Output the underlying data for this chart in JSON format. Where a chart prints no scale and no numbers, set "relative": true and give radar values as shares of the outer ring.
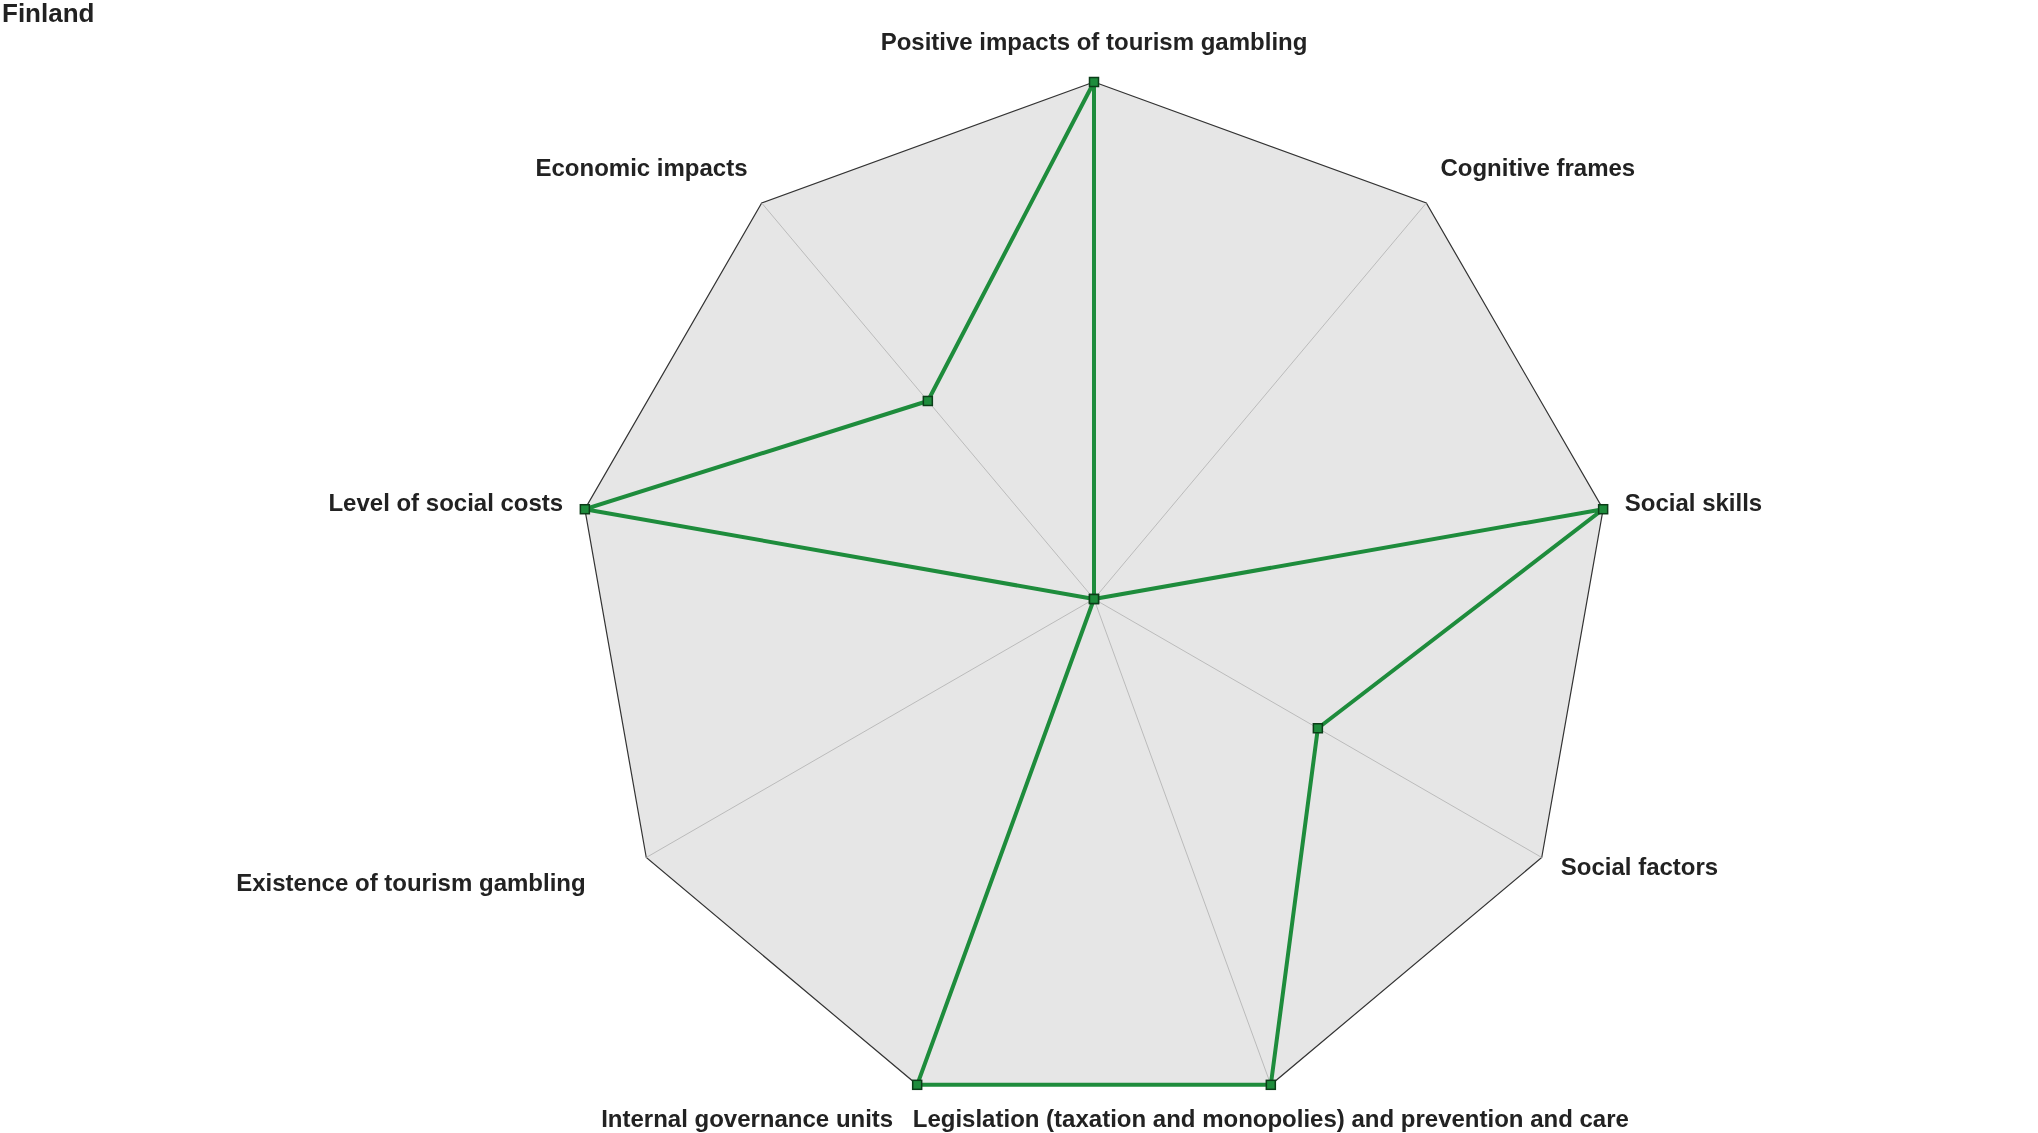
{
  "chart_data": {
    "type": "radar",
    "title": "Finland",
    "relative": true,
    "grid": true,
    "marker": "square",
    "line_style": "solid",
    "categories": [
      "Positive impacts of tourism gambling",
      "Cognitive frames",
      "Social skills",
      "Social factors",
      "Legislation (taxation and monopolies) and prevention and care",
      "Internal governance units",
      "Existence of tourism gambling",
      "Level of social costs",
      "Economic impacts"
    ],
    "series": [
      {
        "color": "#1e8c3c",
        "values": [
          1,
          0,
          1,
          0.5,
          1,
          1,
          0,
          1,
          0.5
        ]
      }
    ]
  }
}
